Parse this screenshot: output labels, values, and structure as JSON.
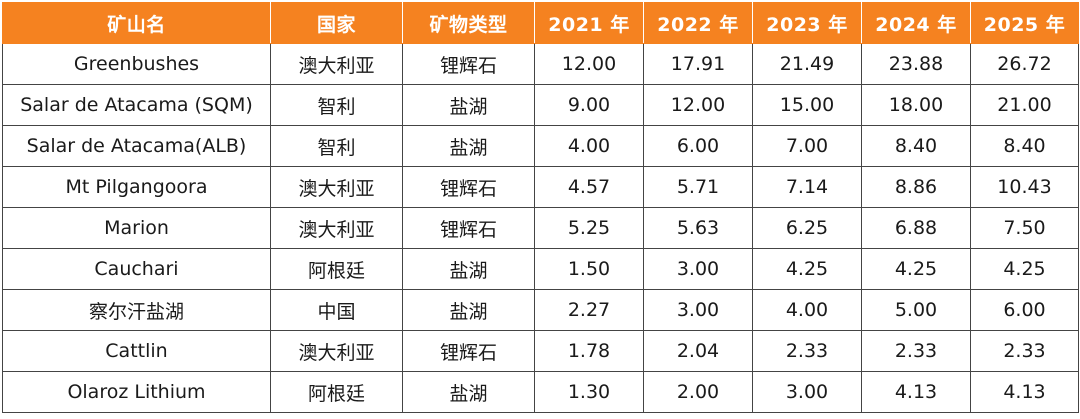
{
  "table": {
    "headers": [
      "矿山名",
      "国家",
      "矿物类型",
      "2021 年",
      "2022 年",
      "2023 年",
      "2024 年",
      "2025 年"
    ],
    "rows": [
      [
        "Greenbushes",
        "澳大利亚",
        "锂辉石",
        "12.00",
        "17.91",
        "21.49",
        "23.88",
        "26.72"
      ],
      [
        "Salar de Atacama (SQM)",
        "智利",
        "盐湖",
        "9.00",
        "12.00",
        "15.00",
        "18.00",
        "21.00"
      ],
      [
        "Salar de Atacama(ALB)",
        "智利",
        "盐湖",
        "4.00",
        "6.00",
        "7.00",
        "8.40",
        "8.40"
      ],
      [
        "Mt Pilgangoora",
        "澳大利亚",
        "锂辉石",
        "4.57",
        "5.71",
        "7.14",
        "8.86",
        "10.43"
      ],
      [
        "Marion",
        "澳大利亚",
        "锂辉石",
        "5.25",
        "5.63",
        "6.25",
        "6.88",
        "7.50"
      ],
      [
        "Cauchari",
        "阿根廷",
        "盐湖",
        "1.50",
        "3.00",
        "4.25",
        "4.25",
        "4.25"
      ],
      [
        "察尔汗盐湖",
        "中国",
        "盐湖",
        "2.27",
        "3.00",
        "4.00",
        "5.00",
        "6.00"
      ],
      [
        "Cattlin",
        "澳大利亚",
        "锂辉石",
        "1.78",
        "2.04",
        "2.33",
        "2.33",
        "2.33"
      ],
      [
        "Olaroz Lithium",
        "阿根廷",
        "盐湖",
        "1.30",
        "2.00",
        "3.00",
        "4.13",
        "4.13"
      ]
    ]
  },
  "colors": {
    "header_bg": "#f58220",
    "header_text": "#ffffff",
    "border": "#444444"
  }
}
